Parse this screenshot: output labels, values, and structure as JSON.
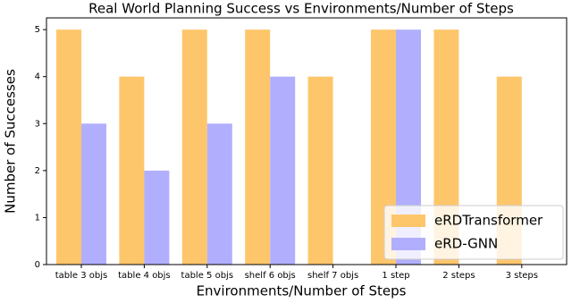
{
  "chart_data": {
    "type": "bar",
    "title": "Real World Planning Success vs Environments/Number of Steps",
    "x_label": "Environments/Number of Steps",
    "y_label": "Number of Successes",
    "categories": [
      "table 3 objs",
      "table 4 objs",
      "table 5 objs",
      "shelf 6 objs",
      "shelf 7 objs",
      "1 step",
      "2 steps",
      "3 steps"
    ],
    "series": [
      {
        "name": "eRDTransformer",
        "color": "#fec66b",
        "values": [
          5,
          4,
          5,
          5,
          4,
          5,
          5,
          4
        ]
      },
      {
        "name": "eRD-GNN",
        "color": "#b1affd",
        "values": [
          3,
          2,
          3,
          4,
          0,
          5,
          0,
          0
        ]
      }
    ],
    "ylim": [
      0,
      5.25
    ],
    "yticks": [
      0,
      1,
      2,
      3,
      4,
      5
    ],
    "legend": "lower right"
  }
}
